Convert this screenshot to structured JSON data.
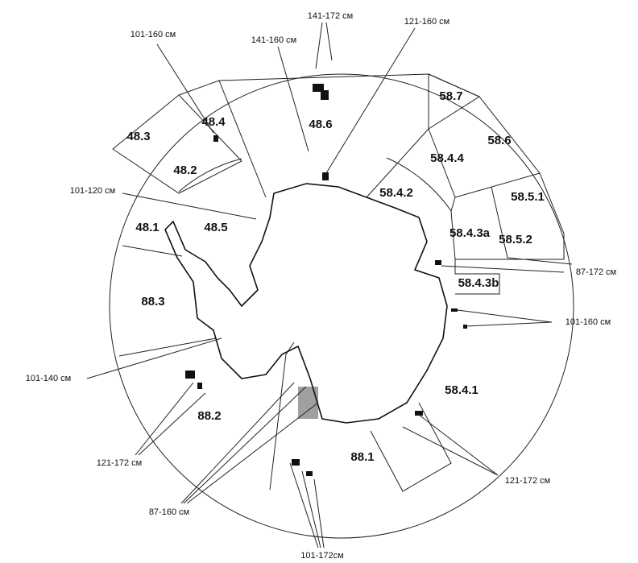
{
  "areas": [
    "48.3",
    "48.4",
    "48.6",
    "48.2",
    "48.5",
    "48.1",
    "58.7",
    "58.6",
    "58.4.4",
    "58.4.2",
    "58.5.1",
    "58.4.3a",
    "58.5.2",
    "58.4.3b",
    "88.3",
    "88.2",
    "88.1",
    "58.4.1"
  ],
  "callouts": [
    "141-172 см",
    "121-160 см",
    "101-160 см",
    "141-160 см",
    "101-120 см",
    "87-172 см",
    "101-160 см",
    "101-140 см",
    "121-172 см",
    "121-172 см",
    "87-160 см",
    "101-172см"
  ]
}
